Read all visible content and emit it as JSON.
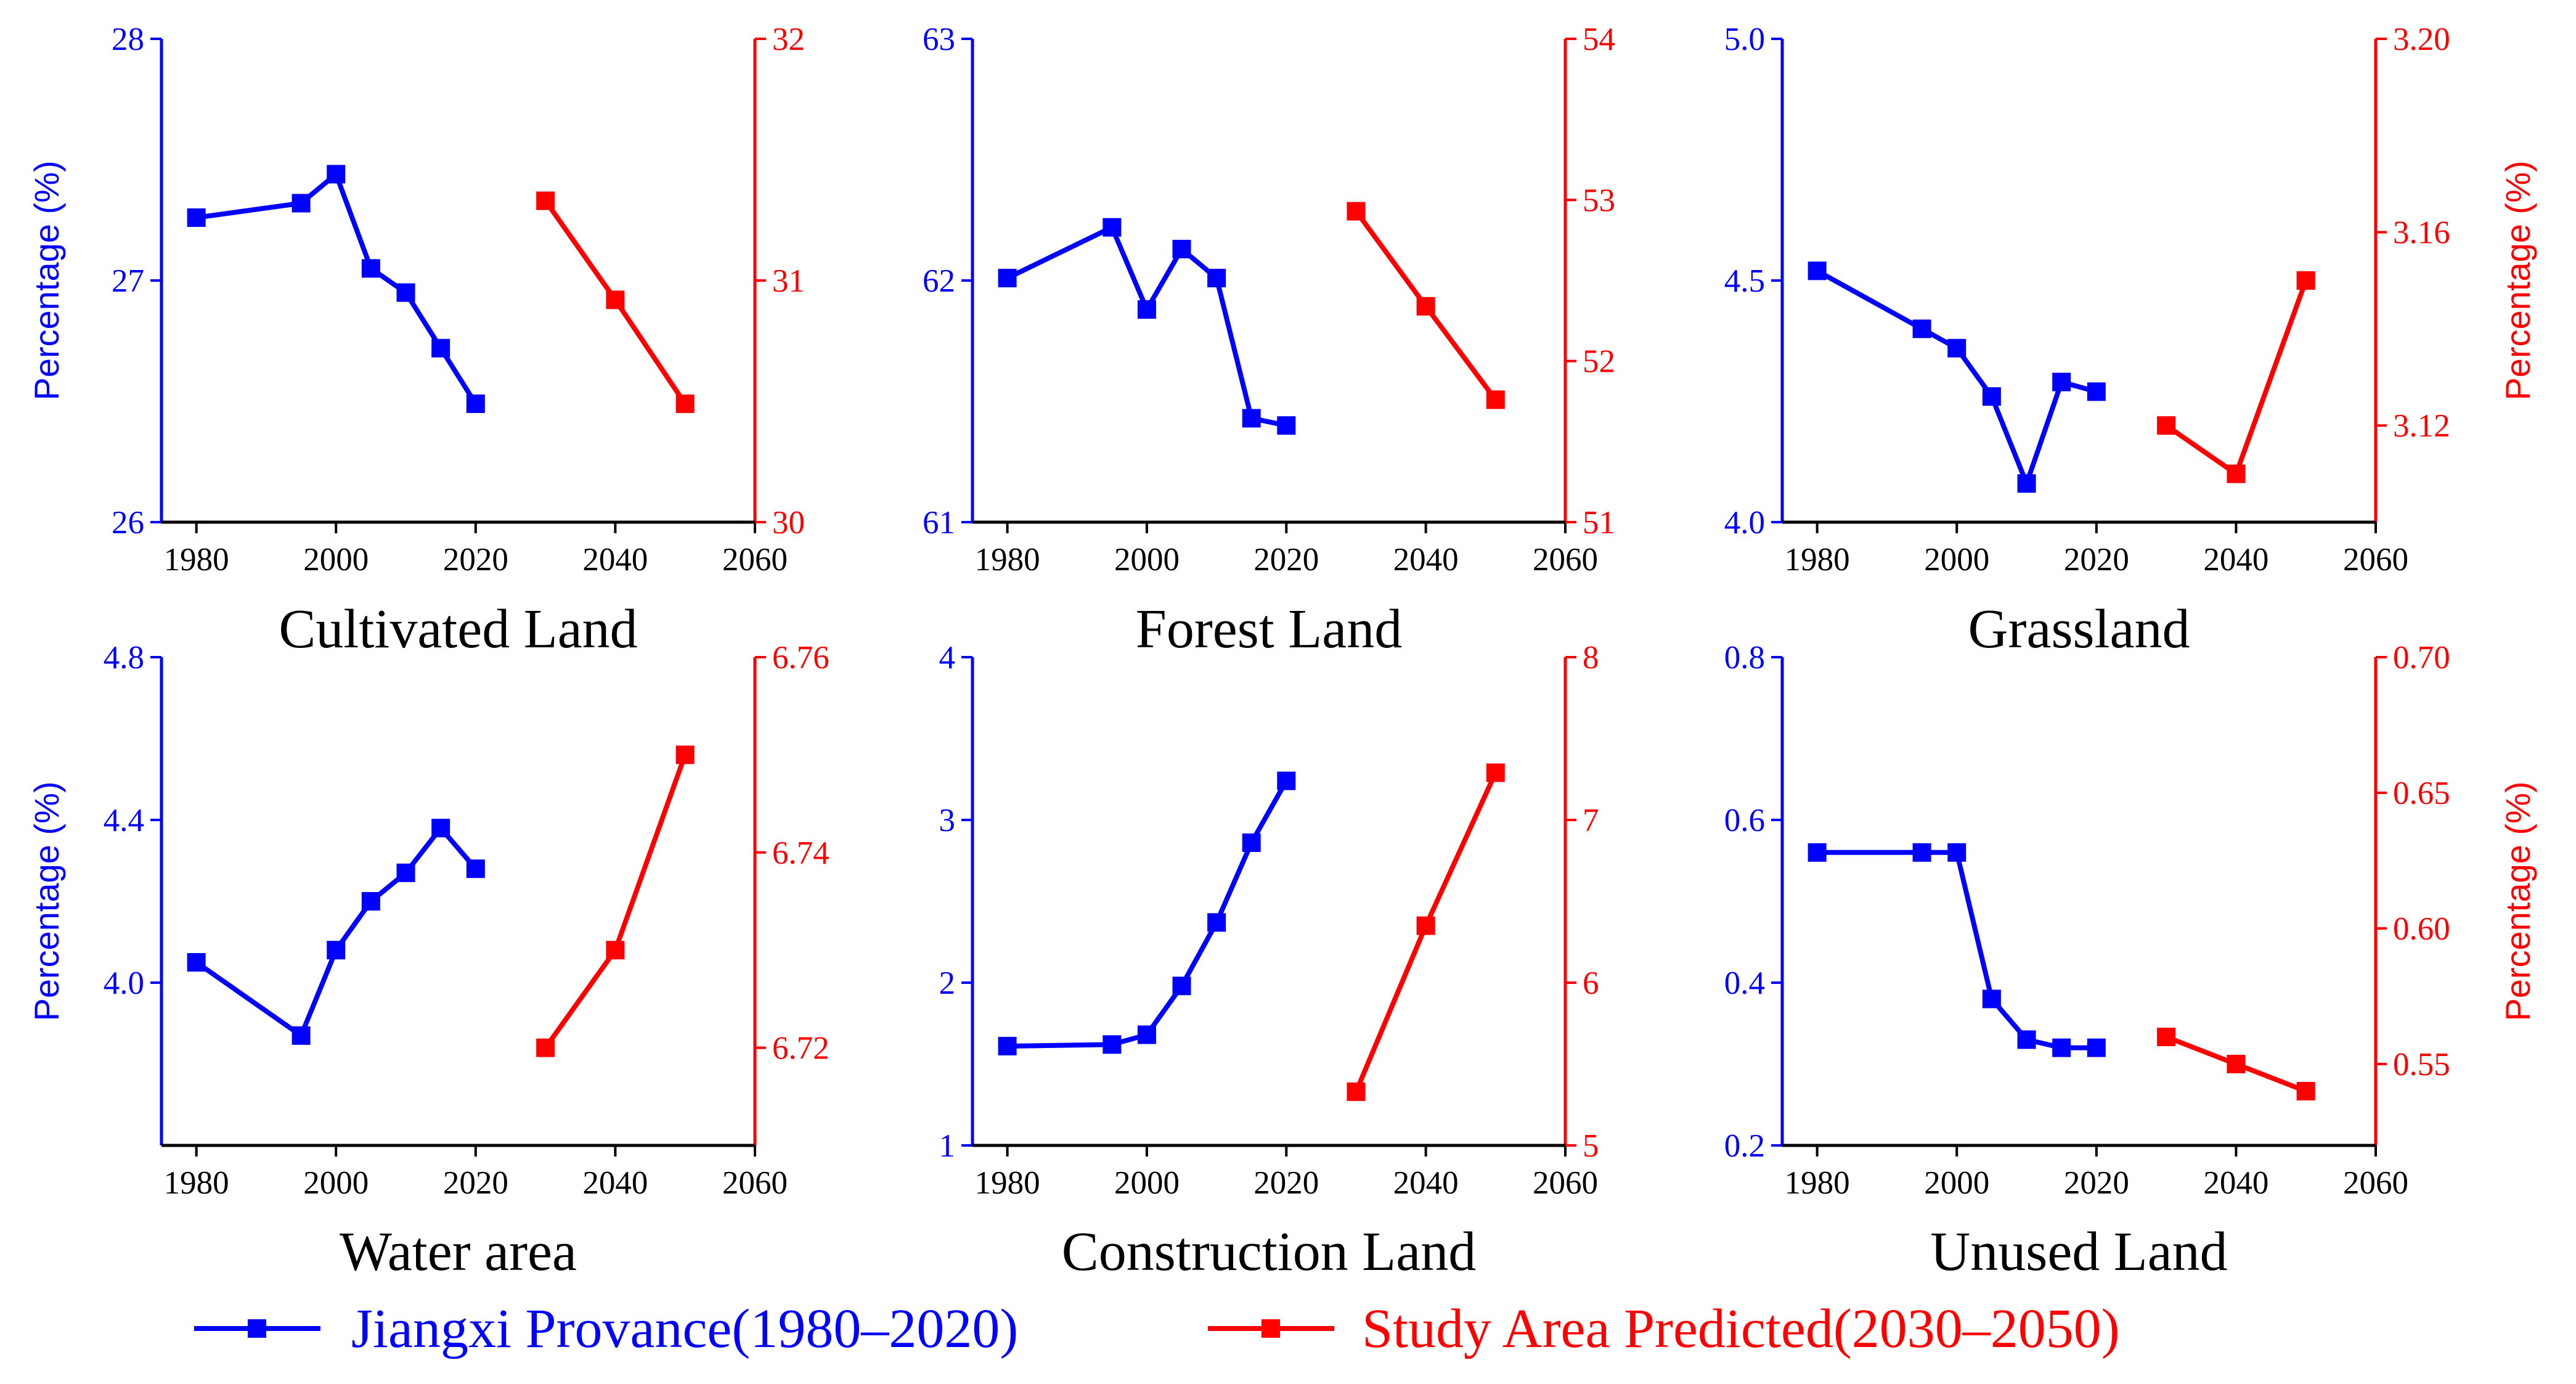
{
  "colors": {
    "historical": "#0000FF",
    "predicted": "#FF0000",
    "text": "#000000"
  },
  "legend": [
    {
      "label": "Jiangxi Provance(1980–2020)",
      "color": "#0000FF"
    },
    {
      "label": "Study Area Predicted(2030–2050)",
      "color": "#FF0000"
    }
  ],
  "chart_data": [
    {
      "type": "line",
      "title": "Cultivated Land",
      "xlim": [
        1975,
        2060
      ],
      "x_ticks": [
        1980,
        2000,
        2020,
        2040,
        2060
      ],
      "ylabel_left": "Percentage (%)",
      "ylabel_right": "",
      "ylim_left": [
        26,
        28
      ],
      "yticks_left": [
        "26",
        "27",
        "28"
      ],
      "ylim_right": [
        30,
        32
      ],
      "yticks_right": [
        "30",
        "31",
        "32"
      ],
      "series": [
        {
          "name": "Jiangxi Provance(1980–2020)",
          "axis": "left",
          "x": [
            1980,
            1995,
            2000,
            2005,
            2010,
            2015,
            2020
          ],
          "y": [
            27.26,
            27.32,
            27.44,
            27.05,
            26.95,
            26.72,
            26.49
          ]
        },
        {
          "name": "Study Area Predicted(2030–2050)",
          "axis": "right",
          "x": [
            2030,
            2040,
            2050
          ],
          "y": [
            31.33,
            30.92,
            30.49
          ]
        }
      ]
    },
    {
      "type": "line",
      "title": "Forest Land",
      "xlim": [
        1975,
        2060
      ],
      "x_ticks": [
        1980,
        2000,
        2020,
        2040,
        2060
      ],
      "ylabel_left": "",
      "ylabel_right": "",
      "ylim_left": [
        61,
        63
      ],
      "yticks_left": [
        "61",
        "62",
        "63"
      ],
      "ylim_right": [
        51,
        54
      ],
      "yticks_right": [
        "51",
        "52",
        "53",
        "54"
      ],
      "series": [
        {
          "name": "Jiangxi Provance(1980–2020)",
          "axis": "left",
          "x": [
            1980,
            1995,
            2000,
            2005,
            2010,
            2015,
            2020
          ],
          "y": [
            62.01,
            62.22,
            61.88,
            62.13,
            62.01,
            61.43,
            61.4
          ]
        },
        {
          "name": "Study Area Predicted(2030–2050)",
          "axis": "right",
          "x": [
            2030,
            2040,
            2050
          ],
          "y": [
            52.93,
            52.34,
            51.76
          ]
        }
      ]
    },
    {
      "type": "line",
      "title": "Grassland",
      "xlim": [
        1975,
        2060
      ],
      "x_ticks": [
        1980,
        2000,
        2020,
        2040,
        2060
      ],
      "ylabel_left": "",
      "ylabel_right": "Percentage (%)",
      "ylim_left": [
        4.0,
        5.0
      ],
      "yticks_left": [
        "4.0",
        "4.5",
        "5.0"
      ],
      "ylim_right": [
        3.1,
        3.2
      ],
      "yticks_right": [
        "3.12",
        "3.16",
        "3.20"
      ],
      "series": [
        {
          "name": "Jiangxi Provance(1980–2020)",
          "axis": "left",
          "x": [
            1980,
            1995,
            2000,
            2005,
            2010,
            2015,
            2020
          ],
          "y": [
            4.52,
            4.4,
            4.36,
            4.26,
            4.08,
            4.29,
            4.27
          ]
        },
        {
          "name": "Study Area Predicted(2030–2050)",
          "axis": "right",
          "x": [
            2030,
            2040,
            2050
          ],
          "y": [
            3.12,
            3.11,
            3.15
          ]
        }
      ]
    },
    {
      "type": "line",
      "title": "Water area",
      "xlim": [
        1975,
        2060
      ],
      "x_ticks": [
        1980,
        2000,
        2020,
        2040,
        2060
      ],
      "ylabel_left": "Percentage (%)",
      "ylabel_right": "",
      "ylim_left": [
        3.6,
        4.8
      ],
      "yticks_left": [
        "4.0",
        "4.4",
        "4.8"
      ],
      "ylim_right": [
        6.71,
        6.76
      ],
      "yticks_right": [
        "6.72",
        "6.74",
        "6.76"
      ],
      "series": [
        {
          "name": "Jiangxi Provance(1980–2020)",
          "axis": "left",
          "x": [
            1980,
            1995,
            2000,
            2005,
            2010,
            2015,
            2020
          ],
          "y": [
            4.05,
            3.87,
            4.08,
            4.2,
            4.27,
            4.38,
            4.28
          ]
        },
        {
          "name": "Study Area Predicted(2030–2050)",
          "axis": "right",
          "x": [
            2030,
            2040,
            2050
          ],
          "y": [
            6.72,
            6.73,
            6.75
          ]
        }
      ]
    },
    {
      "type": "line",
      "title": "Construction Land",
      "xlim": [
        1975,
        2060
      ],
      "x_ticks": [
        1980,
        2000,
        2020,
        2040,
        2060
      ],
      "ylabel_left": "",
      "ylabel_right": "",
      "ylim_left": [
        1,
        4
      ],
      "yticks_left": [
        "1",
        "2",
        "3",
        "4"
      ],
      "ylim_right": [
        5,
        8
      ],
      "yticks_right": [
        "5",
        "6",
        "7",
        "8"
      ],
      "series": [
        {
          "name": "Jiangxi Provance(1980–2020)",
          "axis": "left",
          "x": [
            1980,
            1995,
            2000,
            2005,
            2010,
            2015,
            2020
          ],
          "y": [
            1.61,
            1.62,
            1.68,
            1.98,
            2.37,
            2.86,
            3.24
          ]
        },
        {
          "name": "Study Area Predicted(2030–2050)",
          "axis": "right",
          "x": [
            2030,
            2040,
            2050
          ],
          "y": [
            5.33,
            6.35,
            7.29
          ]
        }
      ]
    },
    {
      "type": "line",
      "title": "Unused Land",
      "xlim": [
        1975,
        2060
      ],
      "x_ticks": [
        1980,
        2000,
        2020,
        2040,
        2060
      ],
      "ylabel_left": "",
      "ylabel_right": "Percentage (%)",
      "ylim_left": [
        0.2,
        0.8
      ],
      "yticks_left": [
        "0.2",
        "0.4",
        "0.6",
        "0.8"
      ],
      "ylim_right": [
        0.52,
        0.7
      ],
      "yticks_right": [
        "0.55",
        "0.60",
        "0.65",
        "0.70"
      ],
      "series": [
        {
          "name": "Jiangxi Provance(1980–2020)",
          "axis": "left",
          "x": [
            1980,
            1995,
            2000,
            2005,
            2010,
            2015,
            2020
          ],
          "y": [
            0.56,
            0.56,
            0.56,
            0.38,
            0.33,
            0.32,
            0.32
          ]
        },
        {
          "name": "Study Area Predicted(2030–2050)",
          "axis": "right",
          "x": [
            2030,
            2040,
            2050
          ],
          "y": [
            0.56,
            0.55,
            0.54
          ]
        }
      ]
    }
  ]
}
